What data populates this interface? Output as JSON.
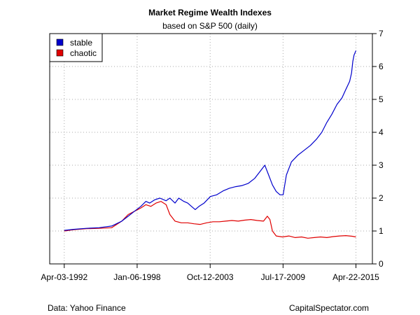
{
  "chart_data": {
    "type": "line",
    "title": "Market Regime Wealth Indexes",
    "subtitle": "based on S&P 500 (daily)",
    "source_left": "Data: Yahoo Finance",
    "source_right": "CapitalSpectator.com",
    "x_axis": {
      "ticks": [
        {
          "label": "Apr-03-1992",
          "year": 1992.25
        },
        {
          "label": "Jan-06-1998",
          "year": 1998.01
        },
        {
          "label": "Oct-12-2003",
          "year": 2003.78
        },
        {
          "label": "Jul-17-2009",
          "year": 2009.54
        },
        {
          "label": "Apr-22-2015",
          "year": 2015.3
        }
      ],
      "range": [
        1991.1,
        2016.6
      ]
    },
    "y_axis": {
      "ticks": [
        0,
        1,
        2,
        3,
        4,
        5,
        6,
        7
      ],
      "range": [
        0,
        7
      ],
      "position": "right"
    },
    "grid": true,
    "legend": {
      "position": "top-left",
      "entries": [
        {
          "name": "stable",
          "color": "#0000CC"
        },
        {
          "name": "chaotic",
          "color": "#E00000"
        }
      ]
    },
    "series": [
      {
        "name": "stable",
        "color": "#0000CC",
        "points": [
          [
            1992.25,
            1.02
          ],
          [
            1993.0,
            1.05
          ],
          [
            1994.0,
            1.08
          ],
          [
            1995.0,
            1.1
          ],
          [
            1996.0,
            1.15
          ],
          [
            1996.8,
            1.3
          ],
          [
            1997.3,
            1.45
          ],
          [
            1997.8,
            1.6
          ],
          [
            1998.3,
            1.75
          ],
          [
            1998.7,
            1.9
          ],
          [
            1999.0,
            1.85
          ],
          [
            1999.4,
            1.95
          ],
          [
            1999.8,
            2.0
          ],
          [
            2000.3,
            1.92
          ],
          [
            2000.6,
            2.0
          ],
          [
            2001.0,
            1.85
          ],
          [
            2001.3,
            2.0
          ],
          [
            2001.7,
            1.9
          ],
          [
            2002.0,
            1.85
          ],
          [
            2002.3,
            1.75
          ],
          [
            2002.6,
            1.65
          ],
          [
            2002.9,
            1.75
          ],
          [
            2003.3,
            1.85
          ],
          [
            2003.8,
            2.05
          ],
          [
            2004.3,
            2.1
          ],
          [
            2004.8,
            2.22
          ],
          [
            2005.3,
            2.3
          ],
          [
            2005.8,
            2.35
          ],
          [
            2006.3,
            2.38
          ],
          [
            2006.8,
            2.45
          ],
          [
            2007.3,
            2.6
          ],
          [
            2007.8,
            2.85
          ],
          [
            2008.1,
            3.0
          ],
          [
            2008.4,
            2.7
          ],
          [
            2008.7,
            2.4
          ],
          [
            2009.0,
            2.2
          ],
          [
            2009.3,
            2.1
          ],
          [
            2009.55,
            2.1
          ],
          [
            2009.8,
            2.7
          ],
          [
            2010.2,
            3.1
          ],
          [
            2010.7,
            3.3
          ],
          [
            2011.2,
            3.45
          ],
          [
            2011.7,
            3.6
          ],
          [
            2012.2,
            3.8
          ],
          [
            2012.6,
            4.0
          ],
          [
            2013.0,
            4.3
          ],
          [
            2013.4,
            4.55
          ],
          [
            2013.8,
            4.85
          ],
          [
            2014.2,
            5.05
          ],
          [
            2014.5,
            5.3
          ],
          [
            2014.8,
            5.55
          ],
          [
            2014.95,
            5.8
          ],
          [
            2015.05,
            6.15
          ],
          [
            2015.15,
            6.35
          ],
          [
            2015.3,
            6.48
          ]
        ]
      },
      {
        "name": "chaotic",
        "color": "#E00000",
        "points": [
          [
            1992.25,
            1.0
          ],
          [
            1993.0,
            1.04
          ],
          [
            1994.0,
            1.07
          ],
          [
            1995.0,
            1.08
          ],
          [
            1996.0,
            1.1
          ],
          [
            1996.8,
            1.3
          ],
          [
            1997.3,
            1.5
          ],
          [
            1997.8,
            1.6
          ],
          [
            1998.3,
            1.7
          ],
          [
            1998.7,
            1.8
          ],
          [
            1999.1,
            1.75
          ],
          [
            1999.5,
            1.85
          ],
          [
            1999.9,
            1.9
          ],
          [
            2000.3,
            1.8
          ],
          [
            2000.6,
            1.5
          ],
          [
            2001.0,
            1.3
          ],
          [
            2001.5,
            1.25
          ],
          [
            2002.0,
            1.25
          ],
          [
            2002.5,
            1.22
          ],
          [
            2003.0,
            1.2
          ],
          [
            2003.5,
            1.25
          ],
          [
            2004.0,
            1.28
          ],
          [
            2004.5,
            1.28
          ],
          [
            2005.0,
            1.3
          ],
          [
            2005.5,
            1.32
          ],
          [
            2006.0,
            1.3
          ],
          [
            2006.5,
            1.33
          ],
          [
            2007.0,
            1.35
          ],
          [
            2007.5,
            1.32
          ],
          [
            2008.0,
            1.3
          ],
          [
            2008.3,
            1.45
          ],
          [
            2008.5,
            1.35
          ],
          [
            2008.7,
            1.0
          ],
          [
            2009.0,
            0.85
          ],
          [
            2009.5,
            0.82
          ],
          [
            2010.0,
            0.85
          ],
          [
            2010.5,
            0.8
          ],
          [
            2011.0,
            0.82
          ],
          [
            2011.5,
            0.78
          ],
          [
            2012.0,
            0.8
          ],
          [
            2012.5,
            0.82
          ],
          [
            2013.0,
            0.8
          ],
          [
            2013.5,
            0.83
          ],
          [
            2014.0,
            0.85
          ],
          [
            2014.5,
            0.86
          ],
          [
            2015.0,
            0.84
          ],
          [
            2015.3,
            0.82
          ]
        ]
      }
    ]
  }
}
